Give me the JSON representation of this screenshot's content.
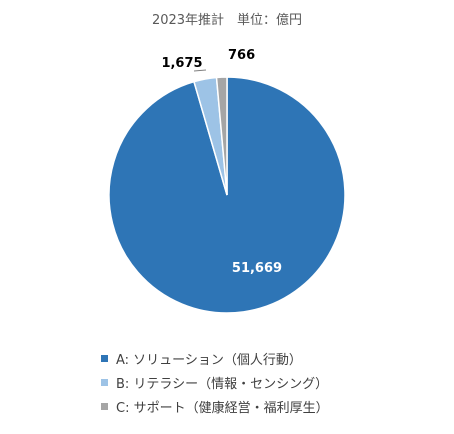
{
  "chart_data": {
    "type": "pie",
    "title": "2023年推計　単位：億円",
    "categories": [
      "A: ソリューション（個人行動）",
      "B: リテラシー（情報・センシング）",
      "C: サポート（健康経営・福利厚生）"
    ],
    "values": [
      51669,
      1675,
      766
    ],
    "labels": [
      "51,669",
      "1,675",
      "766"
    ],
    "colors": [
      "#2e75b6",
      "#9dc3e6",
      "#a5a5a5"
    ],
    "legend_position": "bottom",
    "start_angle_deg": 0,
    "direction": "clockwise"
  }
}
